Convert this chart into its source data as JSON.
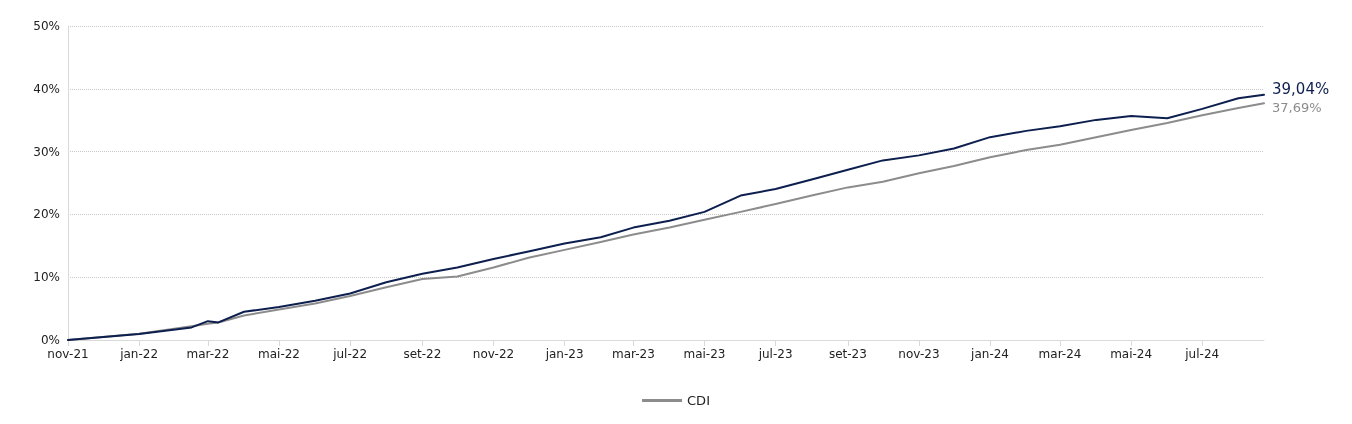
{
  "chart_data": {
    "type": "line",
    "x": [
      "2021-11-01",
      "2022-01-01",
      "2022-02-15",
      "2022-03-01",
      "2022-03-10",
      "2022-04-01",
      "2022-05-01",
      "2022-06-01",
      "2022-07-01",
      "2022-08-01",
      "2022-09-01",
      "2022-10-01",
      "2022-11-01",
      "2022-12-01",
      "2023-01-01",
      "2023-02-01",
      "2023-03-01",
      "2023-04-01",
      "2023-05-01",
      "2023-06-01",
      "2023-07-01",
      "2023-08-01",
      "2023-09-01",
      "2023-10-01",
      "2023-11-01",
      "2023-12-01",
      "2024-01-01",
      "2024-02-01",
      "2024-03-01",
      "2024-04-01",
      "2024-05-01",
      "2024-06-01",
      "2024-07-01",
      "2024-08-01",
      "2024-08-23"
    ],
    "series": [
      {
        "color": "#0d1f4e",
        "values": [
          0,
          0.95,
          2.0,
          3.0,
          2.8,
          4.5,
          5.25,
          6.25,
          7.4,
          9.2,
          10.55,
          11.55,
          12.9,
          14.1,
          15.35,
          16.35,
          17.9,
          19.0,
          20.4,
          23.0,
          24.05,
          25.55,
          27.1,
          28.6,
          29.4,
          30.5,
          32.3,
          33.3,
          34.05,
          35.05,
          35.65,
          35.3,
          36.8,
          38.5,
          39.04
        ]
      },
      {
        "name": "CDI",
        "color": "#8c8c8c",
        "values": [
          0,
          1.0,
          2.2,
          2.6,
          2.8,
          3.9,
          4.85,
          5.8,
          7.0,
          8.4,
          9.7,
          10.1,
          11.55,
          13.1,
          14.35,
          15.6,
          16.8,
          17.9,
          19.15,
          20.4,
          21.65,
          23.0,
          24.3,
          25.2,
          26.55,
          27.7,
          29.1,
          30.25,
          31.1,
          32.3,
          33.45,
          34.55,
          35.8,
          36.95,
          37.69
        ]
      }
    ],
    "xlim": [
      "2021-11-01",
      "2024-08-23"
    ],
    "xticks": [
      {
        "value": "2021-11-01",
        "label": "nov-21"
      },
      {
        "value": "2022-01-01",
        "label": "jan-22"
      },
      {
        "value": "2022-03-01",
        "label": "mar-22"
      },
      {
        "value": "2022-05-01",
        "label": "mai-22"
      },
      {
        "value": "2022-07-01",
        "label": "jul-22"
      },
      {
        "value": "2022-09-01",
        "label": "set-22"
      },
      {
        "value": "2022-11-01",
        "label": "nov-22"
      },
      {
        "value": "2023-01-01",
        "label": "jan-23"
      },
      {
        "value": "2023-03-01",
        "label": "mar-23"
      },
      {
        "value": "2023-05-01",
        "label": "mai-23"
      },
      {
        "value": "2023-07-01",
        "label": "jul-23"
      },
      {
        "value": "2023-09-01",
        "label": "set-23"
      },
      {
        "value": "2023-11-01",
        "label": "nov-23"
      },
      {
        "value": "2024-01-01",
        "label": "jan-24"
      },
      {
        "value": "2024-03-01",
        "label": "mar-24"
      },
      {
        "value": "2024-05-01",
        "label": "mai-24"
      },
      {
        "value": "2024-07-01",
        "label": "jul-24"
      }
    ],
    "ylim": [
      0,
      50
    ],
    "yticks": [
      {
        "value": 0,
        "label": "0%"
      },
      {
        "value": 10,
        "label": "10%"
      },
      {
        "value": 20,
        "label": "20%"
      },
      {
        "value": 30,
        "label": "30%"
      },
      {
        "value": 40,
        "label": "40%"
      },
      {
        "value": 50,
        "label": "50%"
      }
    ],
    "annotations": [
      {
        "text": "39,04%",
        "x": "2024-08-23",
        "y": 39.04
      },
      {
        "text": "37,69%",
        "x": "2024-08-23",
        "y": 37.69
      }
    ],
    "grid": "y",
    "legend": "bottom",
    "marker": "none",
    "line_style": "solid"
  }
}
